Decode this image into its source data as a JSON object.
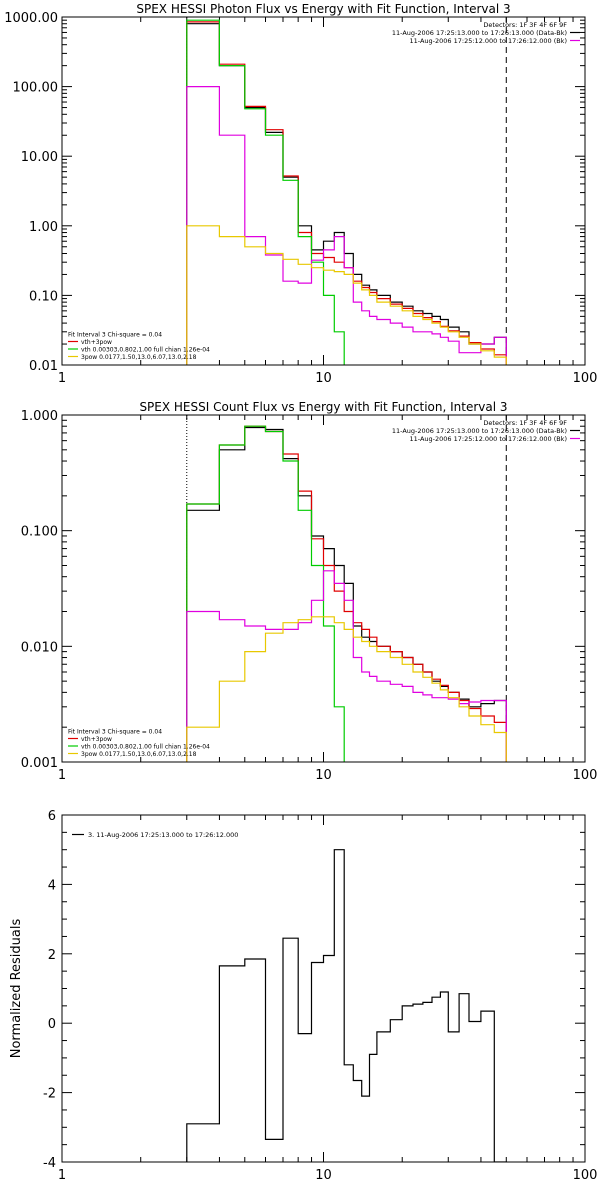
{
  "colors": {
    "data": "#000000",
    "total_fit": "#e00000",
    "vth": "#00cc00",
    "3pow": "#e000e0",
    "vth_plus_3pow_component": "#e8c800",
    "background": "#ffffff"
  },
  "chart_data": [
    {
      "type": "line",
      "title": "SPEX HESSI Photon Flux vs Energy with Fit Function, Interval 3",
      "xlabel": "",
      "ylabel": "",
      "xscale": "log",
      "yscale": "log",
      "xlim": [
        1,
        100
      ],
      "ylim": [
        0.01,
        1000
      ],
      "x_tick_labels": [
        "1",
        "10",
        "100"
      ],
      "y_tick_labels": [
        "0.01",
        "0.10",
        "1.00",
        "10.00",
        "100.00",
        "1000.00"
      ],
      "vlines": [
        {
          "x": 3,
          "style": "dotted"
        },
        {
          "x": 50,
          "style": "dashed"
        }
      ],
      "legend_topright": [
        {
          "text": "Detectors: 1F 3F 4F 6F 9F",
          "line": false
        },
        {
          "text": "11-Aug-2006 17:25:13.000 to 17:26:13.000 (Data-Bk)",
          "line": true,
          "color": "#000000"
        },
        {
          "text": "11-Aug-2006 17:25:12.000 to 17:26:12.000 (Bk)",
          "line": true,
          "color": "#e000e0"
        }
      ],
      "legend_bottomleft": [
        {
          "text": "Fit Interval 3   Chi-square = 0.04",
          "line": false
        },
        {
          "text": "vth+3pow",
          "line": true,
          "color": "#e00000"
        },
        {
          "text": "vth 0.00303,0.802,1.00  full chian 1.26e-04",
          "line": true,
          "color": "#00cc00"
        },
        {
          "text": "3pow 0.0177,1.50,13.0,6.07,13.0,2.18",
          "line": true,
          "color": "#e8c800"
        }
      ],
      "series": [
        {
          "name": "11-Aug-2006 17:25:13.000 to 17:26:13.000 (Data-Bk)",
          "color": "#000000",
          "edges": [
            3,
            4,
            5,
            6,
            7,
            8,
            9,
            10,
            11,
            12,
            13,
            14,
            15,
            16,
            18,
            20,
            22,
            24,
            26,
            28,
            30,
            33,
            36,
            40,
            45,
            50
          ],
          "values": [
            800,
            200,
            50,
            22,
            5,
            1.0,
            0.45,
            0.6,
            0.8,
            0.4,
            0.2,
            0.14,
            0.12,
            0.1,
            0.08,
            0.07,
            0.06,
            0.055,
            0.05,
            0.045,
            0.035,
            0.03,
            0.02,
            0.02,
            0.025
          ]
        },
        {
          "name": "vth+3pow",
          "color": "#e00000",
          "edges": [
            3,
            4,
            5,
            6,
            7,
            8,
            9,
            10,
            11,
            12,
            13,
            14,
            15,
            16,
            18,
            20,
            22,
            24,
            26,
            28,
            30,
            33,
            36,
            40,
            45,
            50
          ],
          "values": [
            850,
            210,
            52,
            24,
            5.2,
            0.8,
            0.4,
            0.35,
            0.3,
            0.25,
            0.16,
            0.13,
            0.11,
            0.09,
            0.075,
            0.065,
            0.055,
            0.048,
            0.042,
            0.036,
            0.031,
            0.026,
            0.021,
            0.017,
            0.014
          ]
        },
        {
          "name": "vth",
          "color": "#00cc00",
          "edges": [
            3,
            4,
            5,
            6,
            7,
            8,
            9,
            10,
            11,
            12
          ],
          "values": [
            900,
            200,
            48,
            20,
            4.5,
            0.7,
            0.3,
            0.1,
            0.03
          ]
        },
        {
          "name": "11-Aug-2006 17:25:12.000 to 17:26:12.000 (Bk)",
          "color": "#e000e0",
          "edges": [
            3,
            4,
            5,
            6,
            7,
            8,
            9,
            10,
            11,
            12,
            13,
            14,
            15,
            16,
            18,
            20,
            22,
            24,
            26,
            28,
            30,
            33,
            36,
            40,
            45,
            50
          ],
          "values": [
            100,
            20,
            0.7,
            0.38,
            0.16,
            0.15,
            0.32,
            0.45,
            0.7,
            0.25,
            0.08,
            0.06,
            0.05,
            0.045,
            0.04,
            0.035,
            0.03,
            0.03,
            0.028,
            0.025,
            0.022,
            0.015,
            0.015,
            0.02,
            0.025
          ]
        },
        {
          "name": "3pow",
          "color": "#e8c800",
          "edges": [
            3,
            4,
            5,
            6,
            7,
            8,
            9,
            10,
            11,
            12,
            13,
            14,
            15,
            16,
            18,
            20,
            22,
            24,
            26,
            28,
            30,
            33,
            36,
            40,
            45,
            50
          ],
          "values": [
            1.0,
            0.7,
            0.5,
            0.4,
            0.33,
            0.28,
            0.25,
            0.23,
            0.22,
            0.2,
            0.15,
            0.12,
            0.1,
            0.08,
            0.07,
            0.06,
            0.05,
            0.045,
            0.04,
            0.035,
            0.03,
            0.025,
            0.02,
            0.016,
            0.013
          ]
        }
      ]
    },
    {
      "type": "line",
      "title": "SPEX HESSI Count Flux vs Energy with Fit Function, Interval 3",
      "xlabel": "",
      "ylabel": "",
      "xscale": "log",
      "yscale": "log",
      "xlim": [
        1,
        100
      ],
      "ylim": [
        0.001,
        1
      ],
      "x_tick_labels": [
        "1",
        "10",
        "100"
      ],
      "y_tick_labels": [
        "0.001",
        "0.010",
        "0.100",
        "1.000"
      ],
      "vlines": [
        {
          "x": 3,
          "style": "dotted"
        },
        {
          "x": 50,
          "style": "dashed"
        }
      ],
      "legend_topright": [
        {
          "text": "Detectors: 1F 3F 4F 6F 9F",
          "line": false
        },
        {
          "text": "11-Aug-2006 17:25:13.000 to 17:26:13.000 (Data-Bk)",
          "line": true,
          "color": "#000000"
        },
        {
          "text": "11-Aug-2006 17:25:12.000 to 17:26:12.000 (Bk)",
          "line": true,
          "color": "#e000e0"
        }
      ],
      "legend_bottomleft": [
        {
          "text": "Fit Interval 3   Chi-square = 0.04",
          "line": false
        },
        {
          "text": "vth+3pow",
          "line": true,
          "color": "#e00000"
        },
        {
          "text": "vth 0.00303,0.802,1.00  full chian 1.26e-04",
          "line": true,
          "color": "#00cc00"
        },
        {
          "text": "3pow 0.0177,1.50,13.0,6.07,13.0,2.18",
          "line": true,
          "color": "#e8c800"
        }
      ],
      "series": [
        {
          "name": "11-Aug-2006 17:25:13.000 to 17:26:13.000 (Data-Bk)",
          "color": "#000000",
          "edges": [
            3,
            4,
            5,
            6,
            7,
            8,
            9,
            10,
            11,
            12,
            13,
            14,
            15,
            16,
            18,
            20,
            22,
            24,
            26,
            28,
            30,
            33,
            36,
            40,
            45,
            50
          ],
          "values": [
            0.15,
            0.5,
            0.78,
            0.75,
            0.42,
            0.2,
            0.09,
            0.07,
            0.05,
            0.035,
            0.015,
            0.012,
            0.011,
            0.01,
            0.009,
            0.008,
            0.007,
            0.006,
            0.005,
            0.0045,
            0.004,
            0.0035,
            0.003,
            0.0032,
            0.0034
          ]
        },
        {
          "name": "vth+3pow",
          "color": "#e00000",
          "edges": [
            3,
            4,
            5,
            6,
            7,
            8,
            9,
            10,
            11,
            12,
            13,
            14,
            15,
            16,
            18,
            20,
            22,
            24,
            26,
            28,
            30,
            33,
            36,
            40,
            45,
            50
          ],
          "values": [
            0.17,
            0.55,
            0.8,
            0.72,
            0.46,
            0.22,
            0.085,
            0.05,
            0.03,
            0.02,
            0.016,
            0.014,
            0.012,
            0.01,
            0.009,
            0.008,
            0.007,
            0.006,
            0.0052,
            0.0046,
            0.004,
            0.0034,
            0.0029,
            0.0025,
            0.0022
          ]
        },
        {
          "name": "vth",
          "color": "#00cc00",
          "edges": [
            3,
            4,
            5,
            6,
            7,
            8,
            9,
            10,
            11,
            12
          ],
          "values": [
            0.17,
            0.55,
            0.8,
            0.72,
            0.4,
            0.15,
            0.05,
            0.015,
            0.003
          ]
        },
        {
          "name": "11-Aug-2006 17:25:12.000 to 17:26:12.000 (Bk)",
          "color": "#e000e0",
          "edges": [
            3,
            4,
            5,
            6,
            7,
            8,
            9,
            10,
            11,
            12,
            13,
            14,
            15,
            16,
            18,
            20,
            22,
            24,
            26,
            28,
            30,
            33,
            36,
            40,
            45,
            50
          ],
          "values": [
            0.02,
            0.017,
            0.015,
            0.014,
            0.014,
            0.016,
            0.025,
            0.045,
            0.035,
            0.025,
            0.008,
            0.006,
            0.0055,
            0.005,
            0.0047,
            0.0045,
            0.004,
            0.0038,
            0.0036,
            0.0036,
            0.0035,
            0.0032,
            0.0033,
            0.0034,
            0.0034
          ]
        },
        {
          "name": "3pow",
          "color": "#e8c800",
          "edges": [
            3,
            4,
            5,
            6,
            7,
            8,
            9,
            10,
            11,
            12,
            13,
            14,
            15,
            16,
            18,
            20,
            22,
            24,
            26,
            28,
            30,
            33,
            36,
            40,
            45,
            50
          ],
          "values": [
            0.002,
            0.005,
            0.009,
            0.013,
            0.016,
            0.017,
            0.018,
            0.018,
            0.016,
            0.014,
            0.012,
            0.011,
            0.01,
            0.009,
            0.008,
            0.007,
            0.006,
            0.0054,
            0.0048,
            0.0042,
            0.0036,
            0.003,
            0.0025,
            0.0021,
            0.0018
          ]
        }
      ]
    },
    {
      "type": "line",
      "title": "",
      "xlabel": "",
      "ylabel": "Normalized Residuals",
      "xscale": "log",
      "yscale": "linear",
      "xlim": [
        1,
        100
      ],
      "ylim": [
        -4,
        6
      ],
      "x_tick_labels": [
        "1",
        "10",
        "100"
      ],
      "y_tick_labels": [
        "-4",
        "-2",
        "0",
        "2",
        "4",
        "6"
      ],
      "vlines": [],
      "legend_topleft": [
        {
          "text": "3. 11-Aug-2006 17:25:13.000 to 17:26:12.000",
          "line": true,
          "color": "#000000"
        }
      ],
      "series": [
        {
          "name": "3. 11-Aug-2006 17:25:13.000 to 17:26:12.000",
          "color": "#000000",
          "edges": [
            3,
            4,
            5,
            6,
            7,
            8,
            9,
            10,
            11,
            12,
            13,
            14,
            15,
            16,
            18,
            20,
            22,
            24,
            26,
            28,
            30,
            33,
            36,
            40,
            45,
            50
          ],
          "values": [
            -2.9,
            1.65,
            1.85,
            -3.35,
            2.45,
            -0.3,
            1.75,
            1.95,
            5.0,
            -1.2,
            -1.65,
            -2.1,
            -0.9,
            -0.25,
            0.1,
            0.5,
            0.55,
            0.6,
            0.75,
            0.9,
            -0.25,
            0.85,
            0.05,
            0.35,
            -4.0
          ]
        }
      ]
    }
  ]
}
